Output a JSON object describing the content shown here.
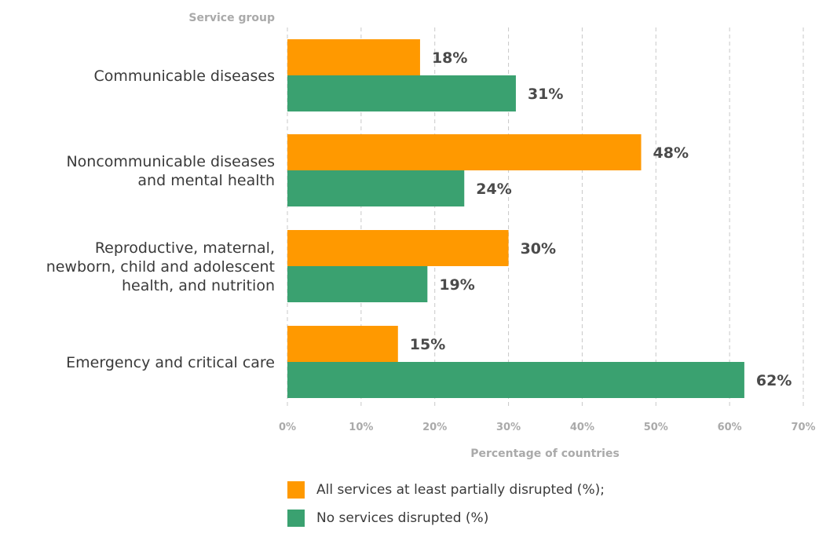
{
  "chart_data": {
    "type": "bar",
    "orientation": "horizontal",
    "ylabel": "Service group",
    "xlabel": "Percentage of countries",
    "categories": [
      "Communicable diseases",
      "Noncommunicable diseases and mental health",
      "Reproductive, maternal, newborn, child and adolescent health, and nutrition",
      "Emergency and critical care"
    ],
    "category_lines": [
      [
        "Communicable diseases"
      ],
      [
        "Noncommunicable diseases",
        "and mental health"
      ],
      [
        "Reproductive, maternal,",
        "newborn, child and adolescent",
        "health, and nutrition"
      ],
      [
        "Emergency and critical care"
      ]
    ],
    "series": [
      {
        "name": "All services at least partially disrupted (%);",
        "color": "#FF9900",
        "values": [
          18,
          48,
          30,
          15
        ]
      },
      {
        "name": "No services disrupted (%)",
        "color": "#3AA170",
        "values": [
          31,
          24,
          19,
          62
        ]
      }
    ],
    "xlim": [
      0,
      70
    ],
    "xticks": [
      0,
      10,
      20,
      30,
      40,
      50,
      60,
      70
    ],
    "xtick_labels": [
      "0%",
      "10%",
      "20%",
      "30%",
      "40%",
      "50%",
      "60%",
      "70%"
    ],
    "value_suffix": "%",
    "grid": "vertical-dashed",
    "legend_position": "bottom"
  }
}
